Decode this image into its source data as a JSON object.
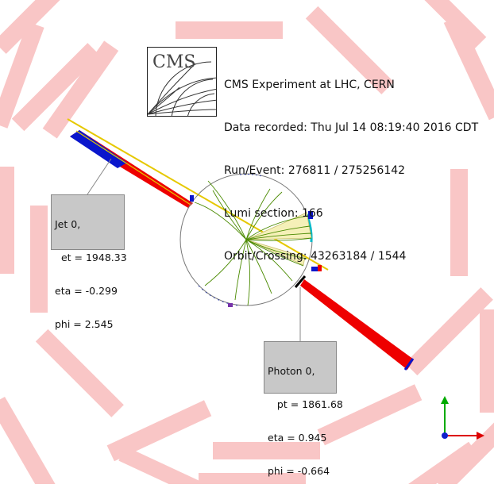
{
  "event_info": {
    "line1": "CMS Experiment at LHC, CERN",
    "line2": "Data recorded: Thu Jul 14 08:19:40 2016 CDT",
    "line3": "Run/Event: 276811 / 275256142",
    "line4": "Lumi section: 166",
    "line5": "Orbit/Crossing: 43263184 / 1544"
  },
  "logo": {
    "text": "CMS"
  },
  "jet_label": {
    "title": "Jet 0,",
    "et": "  et = 1948.33",
    "eta": "eta = -0.299",
    "phi": "phi = 2.545"
  },
  "photon_label": {
    "title": "Photon 0,",
    "pt": "   pt = 1861.68",
    "eta": "eta = 0.945",
    "phi": "phi = -0.664"
  },
  "colors": {
    "detector_block": "#f9c6c6",
    "ecal_deposit": "#ee0000",
    "hcal_deposit": "#0a16cc",
    "jet_line": "#e6c800",
    "track": "#4a8a00",
    "axis_x": "#dd0000",
    "axis_y": "#00aa00",
    "axis_origin": "#1020cc"
  }
}
